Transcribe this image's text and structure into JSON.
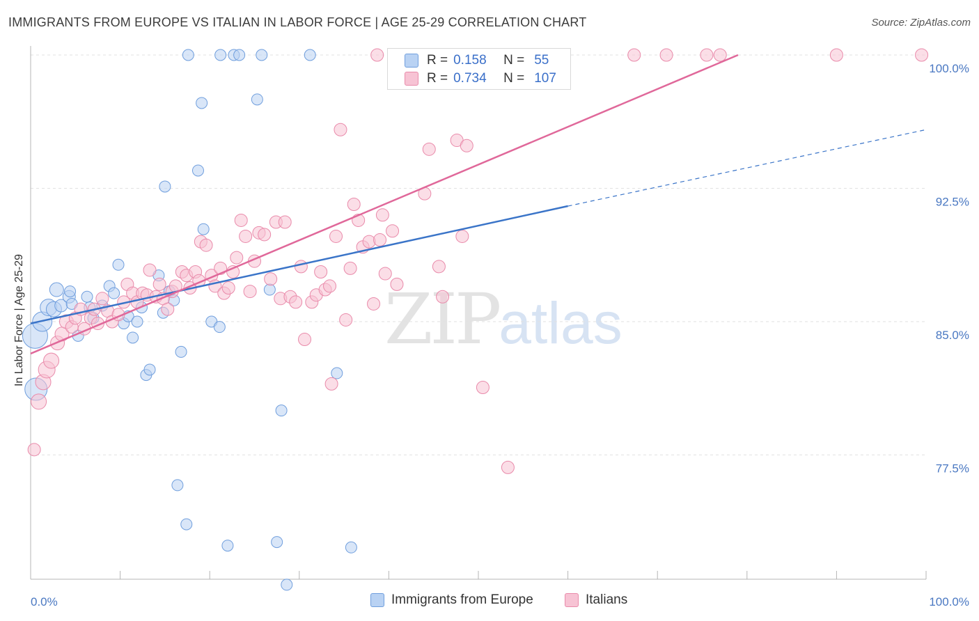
{
  "title": "IMMIGRANTS FROM EUROPE VS ITALIAN IN LABOR FORCE | AGE 25-29 CORRELATION CHART",
  "source": "Source: ZipAtlas.com",
  "watermark": {
    "zip": "ZIP",
    "atlas": "atlas"
  },
  "legend": {
    "r_label": "R =",
    "n_label": "N =",
    "rows": [
      {
        "r": "0.158",
        "n": "55"
      },
      {
        "r": "0.734",
        "n": "107"
      }
    ]
  },
  "colors": {
    "blue_fill": "#b9d2f3",
    "blue_stroke": "#6f9edd",
    "blue_line": "#3a74c8",
    "pink_fill": "#f7c3d4",
    "pink_stroke": "#e98aaa",
    "pink_line": "#e0689a",
    "tick_label": "#4a78c2",
    "grid": "#e2e2e2"
  },
  "chart_data": {
    "type": "scatter",
    "xlabel": "",
    "ylabel": "In Labor Force | Age 25-29",
    "xlim": [
      0,
      100
    ],
    "ylim": [
      70,
      100.8
    ],
    "x_tick_labels": [
      "0.0%",
      "100.0%"
    ],
    "y_ticks": [
      {
        "value": 100,
        "label": "100.0%"
      },
      {
        "value": 92.5,
        "label": "92.5%"
      },
      {
        "value": 85,
        "label": "85.0%"
      },
      {
        "value": 77.5,
        "label": "77.5%"
      }
    ],
    "grid": true,
    "legend_position": "bottom",
    "series": [
      {
        "name": "Immigrants from Europe",
        "color": "blue",
        "trend": {
          "x": [
            0,
            60
          ],
          "y": [
            84.9,
            91.5
          ],
          "dashed_to": [
            100,
            95.8
          ]
        },
        "points": [
          [
            0.5,
            84.2,
            18
          ],
          [
            0.6,
            81.2,
            16
          ],
          [
            1.3,
            85.0,
            14
          ],
          [
            2.0,
            85.8,
            12
          ],
          [
            2.6,
            85.7,
            11
          ],
          [
            2.9,
            86.8,
            10
          ],
          [
            3.4,
            85.9,
            9
          ],
          [
            4.3,
            86.4,
            9
          ],
          [
            4.4,
            86.7,
            8
          ],
          [
            4.6,
            86.0,
            8
          ],
          [
            5.3,
            84.2,
            8
          ],
          [
            6.3,
            86.4,
            8
          ],
          [
            6.6,
            85.8,
            8
          ],
          [
            7.0,
            85.2,
            8
          ],
          [
            8.0,
            85.9,
            8
          ],
          [
            8.8,
            87.0,
            8
          ],
          [
            9.3,
            86.6,
            8
          ],
          [
            9.8,
            88.2,
            8
          ],
          [
            10.4,
            84.9,
            8
          ],
          [
            10.9,
            85.3,
            8
          ],
          [
            11.4,
            84.1,
            8
          ],
          [
            11.9,
            85.0,
            8
          ],
          [
            12.4,
            85.8,
            8
          ],
          [
            12.9,
            82.0,
            8
          ],
          [
            13.3,
            82.3,
            8
          ],
          [
            14.3,
            87.6,
            8
          ],
          [
            14.8,
            85.5,
            8
          ],
          [
            15.0,
            92.6,
            8
          ],
          [
            15.5,
            86.7,
            8
          ],
          [
            16.0,
            86.2,
            8
          ],
          [
            16.4,
            75.8,
            8
          ],
          [
            16.8,
            83.3,
            8
          ],
          [
            17.4,
            73.6,
            8
          ],
          [
            17.6,
            100.0,
            8
          ],
          [
            18.7,
            93.5,
            8
          ],
          [
            19.1,
            97.3,
            8
          ],
          [
            19.3,
            90.2,
            8
          ],
          [
            20.2,
            85.0,
            8
          ],
          [
            21.1,
            84.7,
            8
          ],
          [
            21.2,
            100.0,
            8
          ],
          [
            22.0,
            72.4,
            8
          ],
          [
            22.7,
            100.0,
            8
          ],
          [
            23.3,
            100.0,
            8
          ],
          [
            25.3,
            97.5,
            8
          ],
          [
            25.8,
            100.0,
            8
          ],
          [
            26.7,
            86.8,
            8
          ],
          [
            27.5,
            72.6,
            8
          ],
          [
            28.0,
            80.0,
            8
          ],
          [
            28.6,
            70.2,
            8
          ],
          [
            31.2,
            100.0,
            8
          ],
          [
            34.2,
            82.1,
            8
          ],
          [
            35.8,
            72.3,
            8
          ]
        ]
      },
      {
        "name": "Italians",
        "color": "pink",
        "trend": {
          "x": [
            0,
            79
          ],
          "y": [
            83.2,
            100
          ]
        },
        "points": [
          [
            0.4,
            77.8,
            9
          ],
          [
            0.9,
            80.5,
            11
          ],
          [
            1.4,
            81.6,
            11
          ],
          [
            1.8,
            82.3,
            12
          ],
          [
            2.3,
            82.8,
            11
          ],
          [
            3.0,
            83.8,
            10
          ],
          [
            3.5,
            84.3,
            10
          ],
          [
            4.0,
            85.0,
            10
          ],
          [
            4.6,
            84.7,
            9
          ],
          [
            5.0,
            85.2,
            9
          ],
          [
            5.6,
            85.7,
            9
          ],
          [
            6.0,
            84.6,
            9
          ],
          [
            6.7,
            85.2,
            9
          ],
          [
            7.1,
            85.7,
            9
          ],
          [
            7.5,
            84.9,
            9
          ],
          [
            8.0,
            86.3,
            9
          ],
          [
            8.6,
            85.6,
            9
          ],
          [
            9.1,
            85.0,
            9
          ],
          [
            9.8,
            85.4,
            9
          ],
          [
            10.4,
            86.1,
            9
          ],
          [
            10.8,
            87.1,
            9
          ],
          [
            11.4,
            86.6,
            9
          ],
          [
            11.9,
            86.1,
            9
          ],
          [
            12.5,
            86.6,
            9
          ],
          [
            13.0,
            86.5,
            9
          ],
          [
            13.3,
            87.9,
            9
          ],
          [
            14.0,
            86.4,
            9
          ],
          [
            14.4,
            87.1,
            9
          ],
          [
            14.8,
            86.3,
            9
          ],
          [
            15.3,
            85.7,
            9
          ],
          [
            15.8,
            86.7,
            9
          ],
          [
            16.2,
            87.0,
            9
          ],
          [
            16.9,
            87.8,
            9
          ],
          [
            17.4,
            87.6,
            9
          ],
          [
            17.8,
            86.9,
            9
          ],
          [
            18.4,
            87.8,
            9
          ],
          [
            18.8,
            87.3,
            9
          ],
          [
            19.0,
            89.5,
            9
          ],
          [
            19.6,
            89.3,
            9
          ],
          [
            20.2,
            87.6,
            9
          ],
          [
            20.6,
            87.0,
            9
          ],
          [
            21.2,
            88.0,
            9
          ],
          [
            21.6,
            86.6,
            9
          ],
          [
            22.1,
            86.9,
            9
          ],
          [
            22.6,
            87.8,
            9
          ],
          [
            23.0,
            88.6,
            9
          ],
          [
            23.5,
            90.7,
            9
          ],
          [
            24.0,
            89.8,
            9
          ],
          [
            24.5,
            86.7,
            9
          ],
          [
            25.0,
            88.4,
            9
          ],
          [
            25.5,
            90.0,
            9
          ],
          [
            26.1,
            89.9,
            9
          ],
          [
            26.8,
            87.4,
            9
          ],
          [
            27.4,
            90.6,
            9
          ],
          [
            27.9,
            86.3,
            9
          ],
          [
            28.4,
            90.6,
            9
          ],
          [
            29.0,
            86.4,
            9
          ],
          [
            29.6,
            86.1,
            9
          ],
          [
            30.2,
            88.1,
            9
          ],
          [
            30.6,
            84.0,
            9
          ],
          [
            31.4,
            86.1,
            9
          ],
          [
            31.9,
            86.5,
            9
          ],
          [
            32.4,
            87.8,
            9
          ],
          [
            32.9,
            86.8,
            9
          ],
          [
            33.4,
            87.0,
            9
          ],
          [
            33.6,
            81.5,
            9
          ],
          [
            34.1,
            89.8,
            9
          ],
          [
            34.6,
            95.8,
            9
          ],
          [
            35.2,
            85.1,
            9
          ],
          [
            35.7,
            88.0,
            9
          ],
          [
            36.1,
            91.6,
            9
          ],
          [
            36.6,
            90.7,
            9
          ],
          [
            37.1,
            89.2,
            9
          ],
          [
            37.8,
            89.5,
            9
          ],
          [
            38.3,
            86.0,
            9
          ],
          [
            38.7,
            100.0,
            9
          ],
          [
            39.0,
            89.6,
            9
          ],
          [
            39.3,
            91.0,
            9
          ],
          [
            39.6,
            87.7,
            9
          ],
          [
            40.4,
            90.1,
            9
          ],
          [
            40.9,
            87.1,
            9
          ],
          [
            41.5,
            100.0,
            9
          ],
          [
            42.0,
            100.0,
            9
          ],
          [
            42.9,
            100.0,
            9
          ],
          [
            43.5,
            100.0,
            9
          ],
          [
            44.0,
            92.2,
            9
          ],
          [
            44.5,
            94.7,
            9
          ],
          [
            45.3,
            100.0,
            9
          ],
          [
            45.6,
            88.1,
            9
          ],
          [
            46.0,
            86.4,
            9
          ],
          [
            46.5,
            100.0,
            9
          ],
          [
            47.2,
            100.0,
            9
          ],
          [
            47.6,
            95.2,
            9
          ],
          [
            48.2,
            89.8,
            9
          ],
          [
            48.7,
            94.9,
            9
          ],
          [
            49.3,
            100.0,
            9
          ],
          [
            49.8,
            100.0,
            9
          ],
          [
            50.5,
            81.3,
            9
          ],
          [
            51.4,
            100.0,
            9
          ],
          [
            52.8,
            100.0,
            9
          ],
          [
            53.3,
            76.8,
            9
          ],
          [
            54.7,
            100.0,
            9
          ],
          [
            56.5,
            100.0,
            9
          ],
          [
            58.5,
            100.0,
            9
          ],
          [
            67.4,
            100.0,
            9
          ],
          [
            71.0,
            100.0,
            9
          ],
          [
            75.5,
            100.0,
            9
          ],
          [
            77.0,
            100.0,
            9
          ],
          [
            90.0,
            100.0,
            9
          ],
          [
            99.5,
            100.0,
            9
          ]
        ]
      }
    ]
  }
}
